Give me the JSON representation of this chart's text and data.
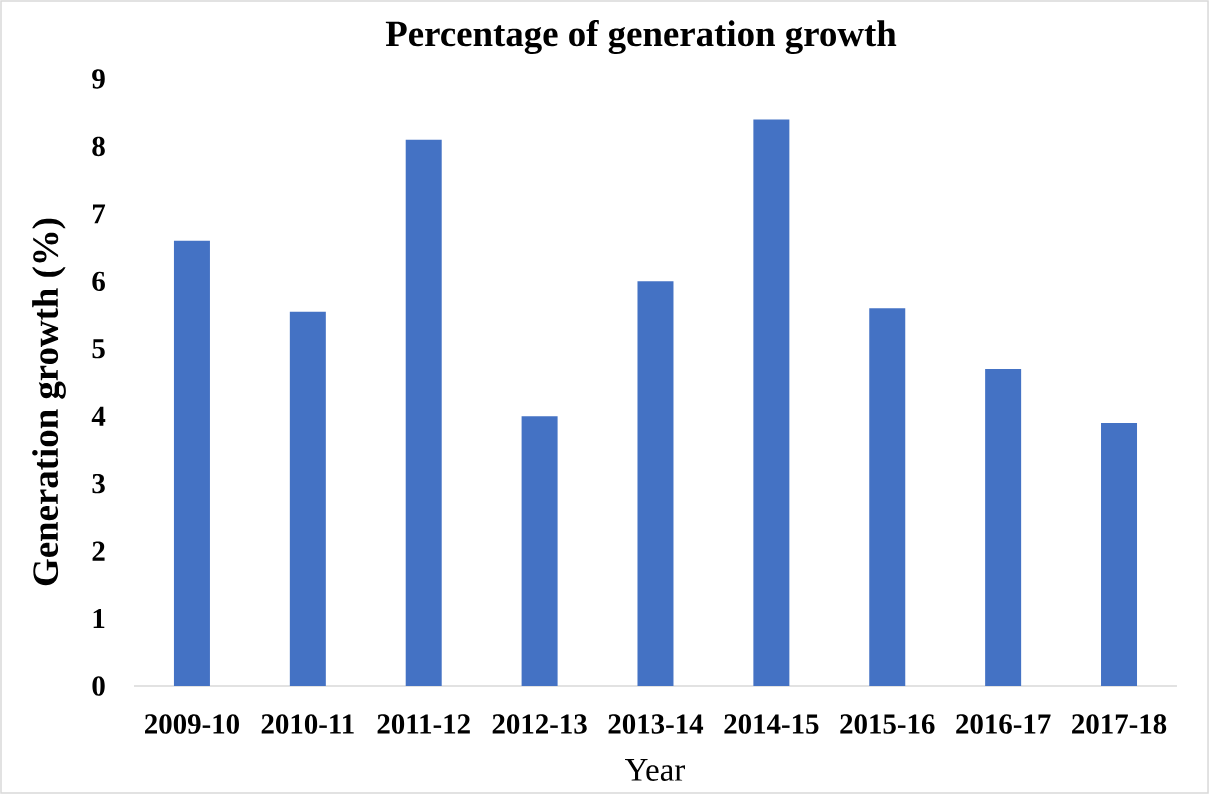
{
  "chart_data": {
    "type": "bar",
    "title": "Percentage of generation growth",
    "xlabel": "Year",
    "ylabel": "Generation growth (%)",
    "categories": [
      "2009-10",
      "2010-11",
      "2011-12",
      "2012-13",
      "2013-14",
      "2014-15",
      "2015-16",
      "2016-17",
      "2017-18"
    ],
    "values": [
      6.6,
      5.55,
      8.1,
      4.0,
      6.0,
      8.4,
      5.6,
      4.7,
      3.9
    ],
    "color": "#4472c4",
    "ylim": [
      0,
      9
    ],
    "yticks": [
      0,
      1,
      2,
      3,
      4,
      5,
      6,
      7,
      8,
      9
    ]
  }
}
